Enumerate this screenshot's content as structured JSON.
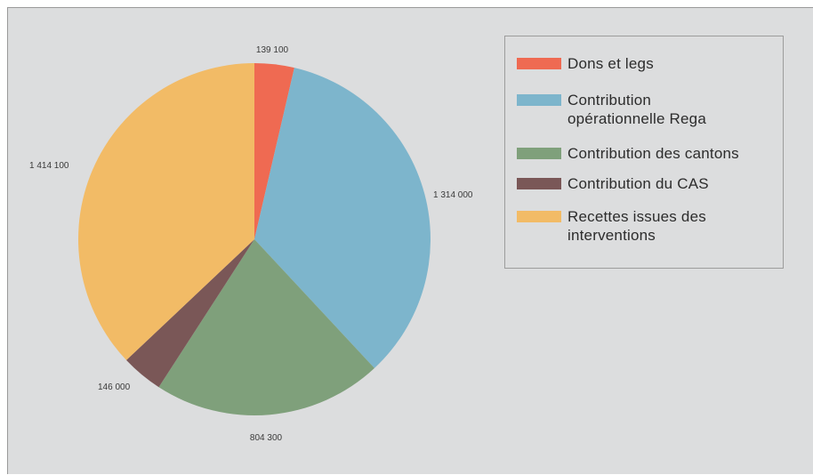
{
  "chart_data": {
    "type": "pie",
    "categories": [
      "Dons et legs",
      "Contribution opérationnelle Rega",
      "Contribution des cantons",
      "Contribution du CAS",
      "Recettes issues des interventions"
    ],
    "values": [
      139100,
      1314000,
      804300,
      146000,
      1414100
    ],
    "value_labels": [
      "139 100",
      "1 314 000",
      "804 300",
      "146 000",
      "1 414 100"
    ],
    "colors": [
      "#ef6a52",
      "#7db5cc",
      "#7fa07b",
      "#7a5757",
      "#f2bb66"
    ],
    "start_angle": "12 o'clock",
    "direction": "clockwise",
    "legend_placement": "right"
  },
  "legend": {
    "items": [
      {
        "label": "Dons et legs",
        "color": "#ef6a52"
      },
      {
        "label": "Contribution opérationnelle Rega",
        "color": "#7db5cc"
      },
      {
        "label": "Contribution des cantons",
        "color": "#7fa07b"
      },
      {
        "label": "Contribution du CAS",
        "color": "#7a5757"
      },
      {
        "label": "Recettes issues des interventions",
        "color": "#f2bb66"
      }
    ]
  }
}
